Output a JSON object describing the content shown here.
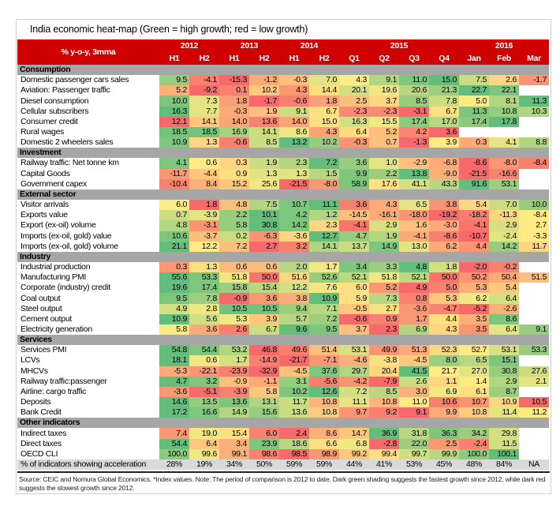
{
  "title": "India economic heat-map (Green = high growth; red = low growth)",
  "unit_label": "% y-o-y, 3mma",
  "years": [
    {
      "label": "2012",
      "span": 2
    },
    {
      "label": "2013",
      "span": 2
    },
    {
      "label": "2014",
      "span": 2
    },
    {
      "label": "2015",
      "span": 4
    },
    {
      "label": "2016",
      "span": 3
    }
  ],
  "periods": [
    "H1",
    "H2",
    "H1",
    "H2",
    "H1",
    "H2",
    "Q1",
    "Q2",
    "Q3",
    "Q4",
    "Jan",
    "Feb",
    "Mar"
  ],
  "colors": {
    "header": "#d00000",
    "section": "#a6a6a6",
    "high": "#63be7b",
    "mid": "#ffeb84",
    "low": "#f8696b",
    "acceleration_row": "#d9d9d9"
  },
  "sections": [
    {
      "name": "Consumption",
      "rows": [
        {
          "label": "Domestic passenger cars sales",
          "values": [
            9.5,
            -4.1,
            -15.3,
            -1.2,
            -0.3,
            7.0,
            4.3,
            9.1,
            11.0,
            15.0,
            7.5,
            2.6,
            -1.7
          ]
        },
        {
          "label": "Aviation: Passenger traffic",
          "values": [
            5.2,
            -9.2,
            0.1,
            10.2,
            4.3,
            14.4,
            20.1,
            19.6,
            20.6,
            21.3,
            22.7,
            22.1,
            null
          ]
        },
        {
          "label": "Diesel consumption",
          "values": [
            10.0,
            7.3,
            1.8,
            -1.7,
            -0.6,
            1.8,
            2.5,
            3.7,
            8.5,
            7.8,
            5.0,
            8.1,
            11.3
          ]
        },
        {
          "label": "Cellular subscribers",
          "values": [
            16.3,
            7.7,
            -0.3,
            1.9,
            9.1,
            6.7,
            -2.3,
            -2.3,
            -3.1,
            6.7,
            11.3,
            10.8,
            10.3
          ]
        },
        {
          "label": "Consumer credit",
          "values": [
            12.1,
            14.1,
            14.0,
            13.6,
            14.0,
            15.0,
            16.3,
            15.5,
            17.4,
            17.0,
            17.4,
            17.8,
            null
          ]
        },
        {
          "label": "Rural wages",
          "values": [
            18.5,
            18.5,
            16.9,
            14.1,
            8.6,
            4.3,
            6.4,
            5.2,
            4.2,
            3.6,
            null,
            null,
            null
          ]
        },
        {
          "label": "Domestic 2 wheelers sales",
          "values": [
            10.9,
            1.3,
            -0.6,
            8.5,
            13.2,
            10.2,
            -0.3,
            0.7,
            -1.3,
            3.9,
            0.3,
            4.1,
            8.8
          ]
        }
      ]
    },
    {
      "name": "Investment",
      "rows": [
        {
          "label": "Railway traffic: Net tonne km",
          "values": [
            4.1,
            0.6,
            0.3,
            1.9,
            2.3,
            7.2,
            3.6,
            1.0,
            -2.9,
            -6.8,
            -8.6,
            -8.0,
            -8.4
          ]
        },
        {
          "label": "Capital Goods",
          "values": [
            -11.7,
            -4.4,
            0.9,
            1.3,
            1.3,
            1.5,
            9.9,
            2.2,
            13.8,
            -9.0,
            -21.5,
            -16.6,
            null
          ]
        },
        {
          "label": "Government capex",
          "values": [
            -10.4,
            8.4,
            15.2,
            25.6,
            -21.5,
            -8.0,
            58.9,
            17.6,
            41.1,
            43.3,
            91.6,
            53.1,
            null
          ]
        }
      ]
    },
    {
      "name": "External sector",
      "rows": [
        {
          "label": "Visitor arrivals",
          "values": [
            6.0,
            1.8,
            4.8,
            7.5,
            10.7,
            11.1,
            3.6,
            4.3,
            6.5,
            3.8,
            5.4,
            7.0,
            10.0
          ]
        },
        {
          "label": "Exports value",
          "values": [
            0.7,
            -3.9,
            2.2,
            10.1,
            4.2,
            1.2,
            -14.5,
            -16.1,
            -18.0,
            -19.2,
            -18.2,
            -11.3,
            -8.4
          ]
        },
        {
          "label": "Export (ex-oil) volume",
          "values": [
            4.8,
            -3.1,
            5.8,
            30.8,
            14.2,
            2.3,
            -4.1,
            2.9,
            1.6,
            -3.0,
            -4.1,
            2.9,
            2.7
          ]
        },
        {
          "label": "Imports (ex-oil, gold) value",
          "values": [
            10.6,
            -3.7,
            0.2,
            -6.3,
            -3.6,
            12.7,
            4.7,
            1.9,
            -4.1,
            -8.6,
            -10.7,
            -2.4,
            -3.3
          ]
        },
        {
          "label": "Imports (ex-oil, gold) volume",
          "values": [
            21.1,
            12.2,
            7.2,
            2.7,
            3.2,
            14.1,
            13.7,
            14.9,
            13.0,
            6.2,
            4.4,
            14.2,
            11.7
          ]
        }
      ]
    },
    {
      "name": "Industry",
      "rows": [
        {
          "label": "Industrial production",
          "values": [
            0.3,
            1.3,
            0.6,
            0.6,
            2.0,
            1.7,
            3.4,
            3.3,
            4.8,
            1.8,
            -2.0,
            -0.2,
            null
          ]
        },
        {
          "label": "Manufacturing PMI",
          "values": [
            55.6,
            53.3,
            51.8,
            50.0,
            51.6,
            52.6,
            52.1,
            51.8,
            52.1,
            50.0,
            50.2,
            50.4,
            51.5
          ]
        },
        {
          "label": "Corporate (industry) credit",
          "values": [
            19.6,
            17.4,
            15.8,
            15.4,
            12.2,
            7.6,
            6.0,
            5.2,
            4.9,
            5.0,
            5.3,
            5.4,
            null
          ]
        },
        {
          "label": "Coal output",
          "values": [
            9.5,
            7.8,
            -0.9,
            3.6,
            3.8,
            10.9,
            5.9,
            7.3,
            0.8,
            5.3,
            6.2,
            6.4,
            null
          ]
        },
        {
          "label": "Steel output",
          "values": [
            4.9,
            2.8,
            10.5,
            10.5,
            9.4,
            7.1,
            -0.5,
            2.7,
            -3.6,
            -4.7,
            -5.2,
            -2.6,
            null
          ]
        },
        {
          "label": "Cement output",
          "values": [
            10.9,
            5.6,
            5.3,
            3.9,
            5.7,
            7.2,
            -0.6,
            0.9,
            1.7,
            4.4,
            3.5,
            8.6,
            null
          ]
        },
        {
          "label": "Electricity generation",
          "values": [
            5.8,
            3.6,
            2.6,
            6.7,
            9.6,
            9.5,
            3.7,
            2.3,
            6.9,
            4.3,
            3.5,
            6.4,
            9.1
          ]
        }
      ]
    },
    {
      "name": "Services",
      "rows": [
        {
          "label": "Services PMI",
          "values": [
            54.8,
            54.4,
            53.2,
            46.8,
            49.6,
            51.4,
            53.1,
            49.9,
            51.3,
            52.3,
            52.7,
            53.1,
            53.3
          ]
        },
        {
          "label": "LCVs",
          "values": [
            18.1,
            0.6,
            1.7,
            -14.9,
            -21.7,
            -7.1,
            -4.6,
            -3.8,
            -4.5,
            8.0,
            6.5,
            15.1,
            null
          ]
        },
        {
          "label": "MHCVs",
          "values": [
            -5.3,
            -22.1,
            -23.9,
            -32.9,
            -4.5,
            37.6,
            29.7,
            20.4,
            41.5,
            21.7,
            27.0,
            30.8,
            27.6
          ]
        },
        {
          "label": "Railway traffic:passenger",
          "values": [
            4.7,
            3.2,
            -0.9,
            -1.1,
            3.1,
            -5.6,
            -4.2,
            -7.9,
            2.6,
            1.1,
            1.4,
            2.9,
            2.1
          ]
        },
        {
          "label": "Airline: cargo traffic",
          "values": [
            -3.6,
            -5.1,
            -3.9,
            5.8,
            10.2,
            12.6,
            7.2,
            8.5,
            3.0,
            6.9,
            6.1,
            8.7,
            null
          ]
        },
        {
          "label": "Deposits",
          "values": [
            14.6,
            13.5,
            13.6,
            13.1,
            11.7,
            10.8,
            11.1,
            10.8,
            11.0,
            10.6,
            10.7,
            10.9,
            10.5
          ]
        },
        {
          "label": "Bank Credit",
          "values": [
            17.2,
            16.6,
            14.9,
            15.6,
            13.6,
            10.8,
            9.7,
            9.2,
            9.1,
            9.9,
            10.8,
            11.4,
            11.2
          ]
        }
      ]
    },
    {
      "name": "Other indicators",
      "rows": [
        {
          "label": "Indirect taxes",
          "values": [
            7.4,
            19.0,
            15.4,
            6.0,
            2.4,
            8.6,
            14.7,
            36.9,
            31.8,
            36.3,
            34.2,
            29.8,
            null
          ]
        },
        {
          "label": "Direct taxes",
          "values": [
            54.4,
            6.4,
            3.4,
            23.9,
            18.6,
            6.6,
            6.8,
            -2.8,
            22.0,
            2.5,
            -2.4,
            11.5,
            null
          ]
        },
        {
          "label": "OECD CLI",
          "values": [
            100.0,
            99.6,
            99.1,
            98.6,
            98.5,
            98.9,
            99.2,
            99.4,
            99.7,
            99.9,
            100.0,
            100.1,
            null
          ]
        }
      ]
    }
  ],
  "acceleration": {
    "label": "% of indicators showing acceleration",
    "values": [
      "28%",
      "19%",
      "34%",
      "50%",
      "59%",
      "59%",
      "44%",
      "41%",
      "53%",
      "45%",
      "48%",
      "84%",
      "NA"
    ]
  },
  "footnote": "Source: CEIC and Nomura Global Economics. *Index values. Note: The period of comparison is 2012 to date. Dark green shading suggests the fastest growth since 2012, while dark red suggests the slowest growth since 2012."
}
